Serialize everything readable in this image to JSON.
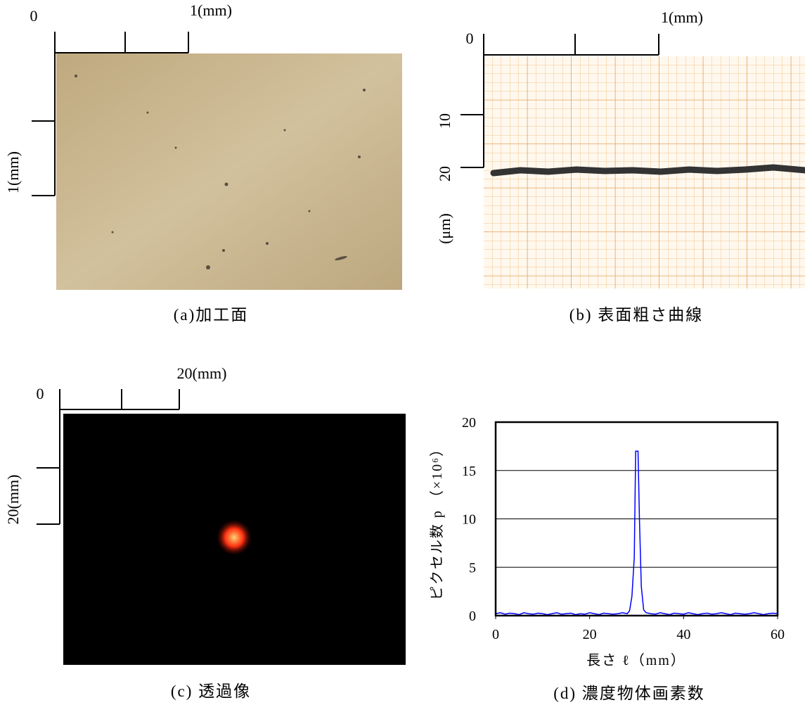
{
  "panel_a": {
    "scale_origin": "0",
    "scale_x": "1(mm)",
    "scale_y": "1(mm)",
    "caption": "(a)加工面"
  },
  "panel_b": {
    "scale_origin": "0",
    "scale_x": "1(mm)",
    "y_labels": [
      "10",
      "20"
    ],
    "y_unit": "(μm)",
    "caption": "(b) 表面粗さ曲線"
  },
  "panel_c": {
    "scale_origin": "0",
    "scale_x": "20(mm)",
    "scale_y": "20(mm)",
    "caption": "(c) 透過像"
  },
  "chart_data": {
    "type": "line",
    "title": "(d) 濃度物体画素数",
    "x_label": "長さ ℓ（mm）",
    "y_label": "ピクセル数 p （×10⁶）",
    "x": [
      0,
      1,
      2,
      3,
      4,
      5,
      6,
      7,
      8,
      9,
      10,
      11,
      12,
      13,
      14,
      15,
      16,
      17,
      18,
      19,
      20,
      21,
      22,
      23,
      24,
      25,
      26,
      27,
      28,
      28.5,
      29,
      29.5,
      29.8,
      30.3,
      30.6,
      31,
      31.5,
      32,
      33,
      34,
      35,
      36,
      37,
      38,
      39,
      40,
      41,
      42,
      43,
      44,
      45,
      46,
      47,
      48,
      49,
      50,
      51,
      52,
      53,
      54,
      55,
      56,
      57,
      58,
      59,
      60
    ],
    "series": [
      {
        "color": "#0000ff",
        "values": [
          0.2,
          0.3,
          0.15,
          0.25,
          0.2,
          0.1,
          0.3,
          0.2,
          0.15,
          0.25,
          0.2,
          0.1,
          0.2,
          0.3,
          0.15,
          0.2,
          0.25,
          0.1,
          0.2,
          0.15,
          0.3,
          0.2,
          0.1,
          0.25,
          0.2,
          0.15,
          0.2,
          0.3,
          0.2,
          0.5,
          2,
          6,
          17,
          17,
          10,
          3,
          0.6,
          0.3,
          0.2,
          0.15,
          0.3,
          0.2,
          0.1,
          0.25,
          0.2,
          0.15,
          0.3,
          0.2,
          0.1,
          0.2,
          0.25,
          0.15,
          0.2,
          0.3,
          0.2,
          0.1,
          0.25,
          0.2,
          0.15,
          0.2,
          0.3,
          0.2,
          0.1,
          0.2,
          0.25,
          0.2
        ]
      }
    ],
    "xlim": [
      0,
      60
    ],
    "xticks": [
      0,
      20,
      40,
      60
    ],
    "ylim": [
      0,
      20
    ],
    "yticks": [
      0,
      5,
      10,
      15,
      20
    ],
    "grid": true
  }
}
